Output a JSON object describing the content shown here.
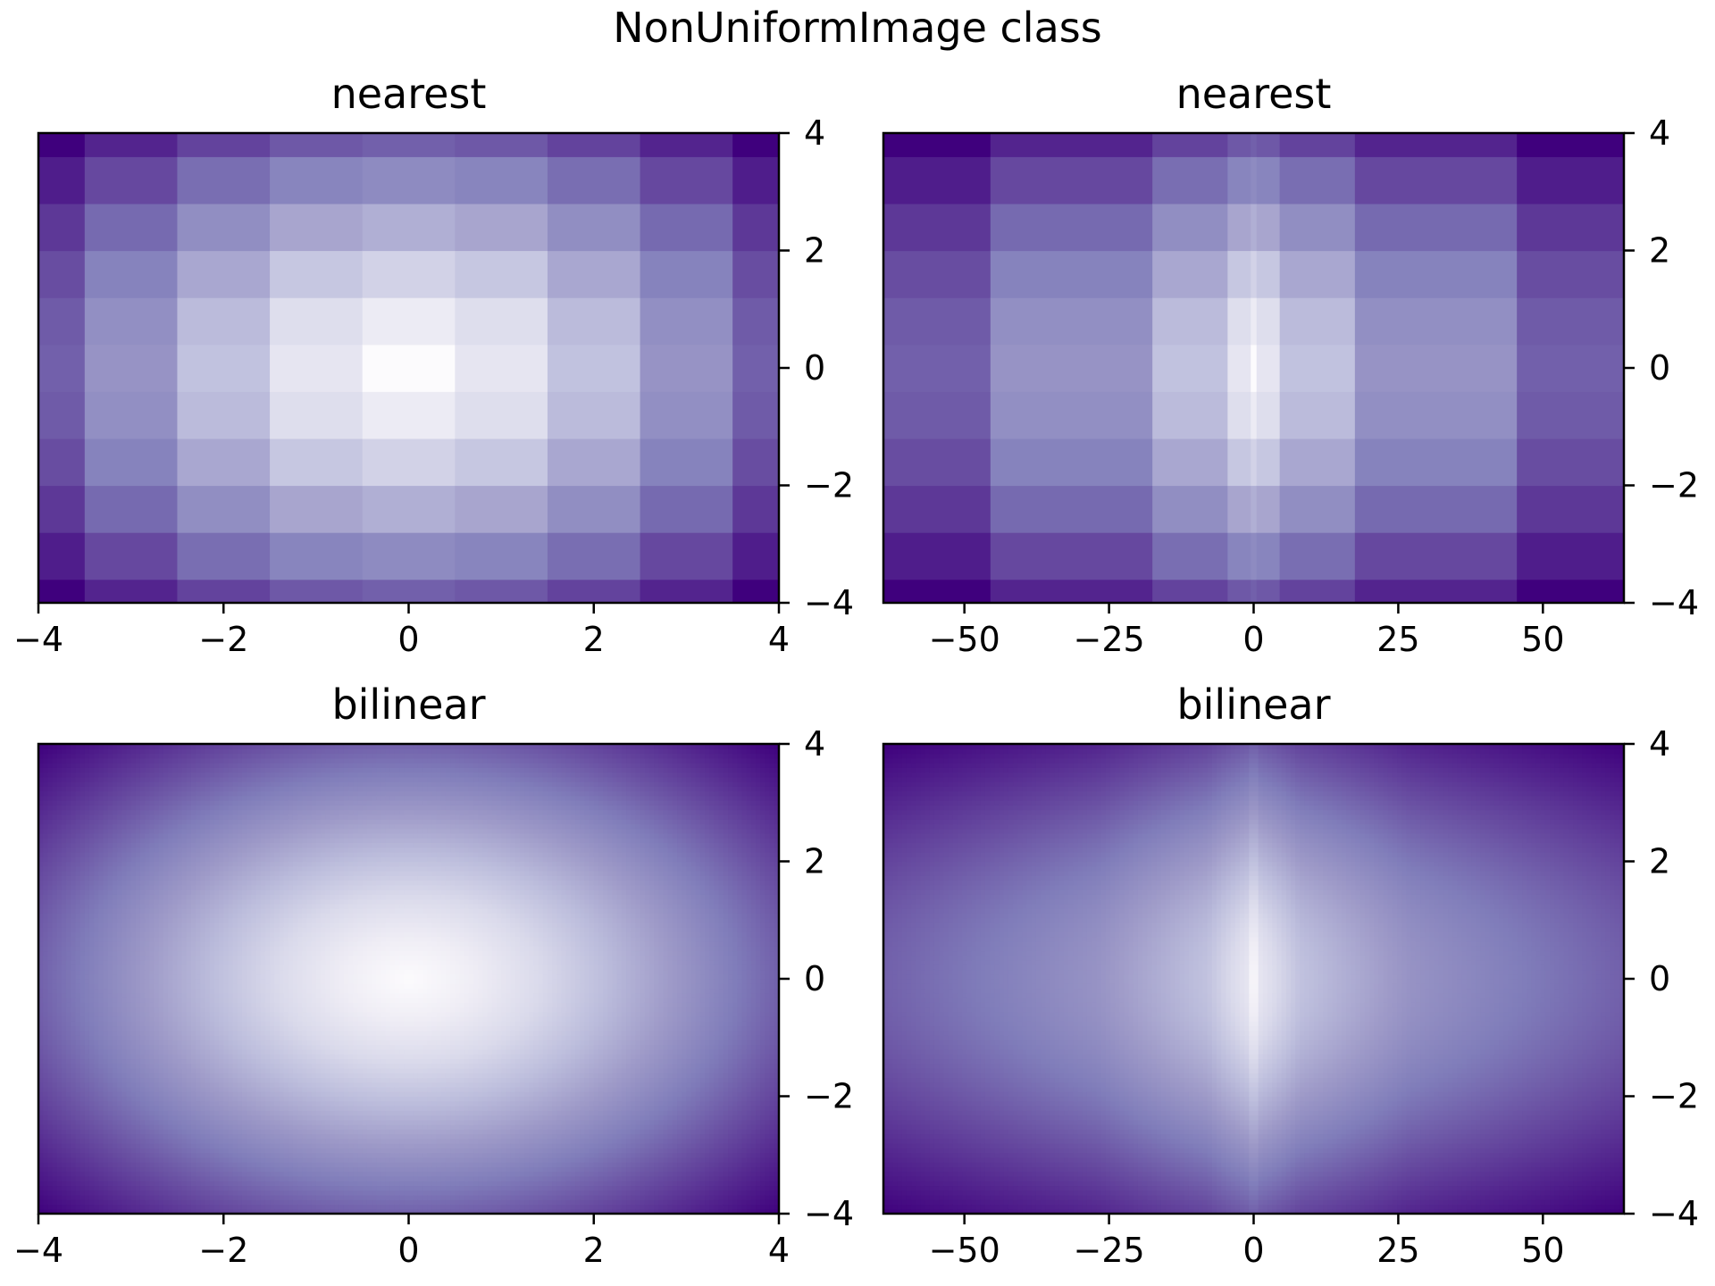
{
  "figure": {
    "title": "NonUniformImage class"
  },
  "colormap": {
    "name": "Purples",
    "stops": [
      "#3f007d",
      "#54278f",
      "#6a51a3",
      "#807dba",
      "#9e9ac8",
      "#bcbddc",
      "#dadaeb",
      "#efedf5",
      "#fcfbfd"
    ]
  },
  "chart_data": [
    {
      "type": "heatmap",
      "title": "nearest",
      "interpolation": "nearest",
      "x": [
        -4,
        -3,
        -2,
        -1,
        0,
        1,
        2,
        3,
        4
      ],
      "y": [
        -4.0,
        -3.2,
        -2.4,
        -1.6,
        -0.8,
        0.0,
        0.8,
        1.6,
        2.4,
        3.2,
        4.0
      ],
      "z": "sqrt(x^2 + y^2)",
      "xlim": [
        -4,
        4
      ],
      "ylim": [
        -4,
        4
      ],
      "xticks": [
        "−4",
        "−2",
        "0",
        "2",
        "4"
      ],
      "yticks": [
        "−4",
        "−2",
        "0",
        "2",
        "4"
      ],
      "yaxis_position": "right",
      "cmap": "Purples"
    },
    {
      "type": "heatmap",
      "title": "nearest",
      "interpolation": "nearest",
      "x": [
        -64,
        -27,
        -8,
        -1,
        0,
        1,
        8,
        27,
        64
      ],
      "y": [
        -4.0,
        -3.2,
        -2.4,
        -1.6,
        -0.8,
        0.0,
        0.8,
        1.6,
        2.4,
        3.2,
        4.0
      ],
      "z": "sqrt(x_base^2 + y^2) where x = x_base^3",
      "xlim": [
        -64,
        64
      ],
      "ylim": [
        -4,
        4
      ],
      "xticks": [
        "−50",
        "−25",
        "0",
        "25",
        "50"
      ],
      "yticks": [
        "−4",
        "−2",
        "0",
        "2",
        "4"
      ],
      "yaxis_position": "right",
      "cmap": "Purples"
    },
    {
      "type": "heatmap",
      "title": "bilinear",
      "interpolation": "bilinear",
      "x": [
        -4,
        -3,
        -2,
        -1,
        0,
        1,
        2,
        3,
        4
      ],
      "y": [
        -4.0,
        -3.2,
        -2.4,
        -1.6,
        -0.8,
        0.0,
        0.8,
        1.6,
        2.4,
        3.2,
        4.0
      ],
      "z": "sqrt(x^2 + y^2)",
      "xlim": [
        -4,
        4
      ],
      "ylim": [
        -4,
        4
      ],
      "xticks": [
        "−4",
        "−2",
        "0",
        "2",
        "4"
      ],
      "yticks": [
        "−4",
        "−2",
        "0",
        "2",
        "4"
      ],
      "yaxis_position": "right",
      "cmap": "Purples"
    },
    {
      "type": "heatmap",
      "title": "bilinear",
      "interpolation": "bilinear",
      "x": [
        -64,
        -27,
        -8,
        -1,
        0,
        1,
        8,
        27,
        64
      ],
      "y": [
        -4.0,
        -3.2,
        -2.4,
        -1.6,
        -0.8,
        0.0,
        0.8,
        1.6,
        2.4,
        3.2,
        4.0
      ],
      "z": "sqrt(x_base^2 + y^2) where x = x_base^3",
      "xlim": [
        -64,
        64
      ],
      "ylim": [
        -4,
        4
      ],
      "xticks": [
        "−50",
        "−25",
        "0",
        "25",
        "50"
      ],
      "yticks": [
        "−4",
        "−2",
        "0",
        "2",
        "4"
      ],
      "yaxis_position": "right",
      "cmap": "Purples"
    }
  ]
}
